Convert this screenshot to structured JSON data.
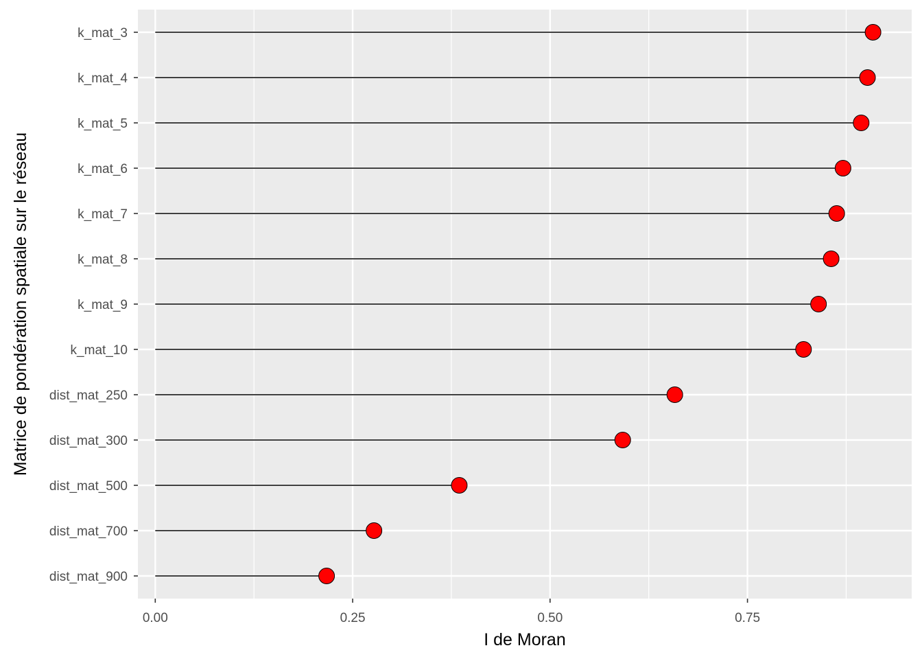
{
  "chart_data": {
    "type": "lollipop",
    "xlabel": "I de Moran",
    "ylabel": "Matrice de pondération spatiale sur le réseau",
    "xlim": [
      -0.022,
      0.958
    ],
    "x_ticks": [
      0.0,
      0.25,
      0.5,
      0.75
    ],
    "x_tick_labels": [
      "0.00",
      "0.25",
      "0.50",
      "0.75"
    ],
    "grid": true,
    "categories": [
      "k_mat_3",
      "k_mat_4",
      "k_mat_5",
      "k_mat_6",
      "k_mat_7",
      "k_mat_8",
      "k_mat_9",
      "k_mat_10",
      "dist_mat_250",
      "dist_mat_300",
      "dist_mat_500",
      "dist_mat_700",
      "dist_mat_900"
    ],
    "values": [
      0.909,
      0.902,
      0.894,
      0.871,
      0.863,
      0.856,
      0.84,
      0.821,
      0.658,
      0.592,
      0.385,
      0.277,
      0.217
    ],
    "point_color": "#FF0000",
    "panel_background": "#EBEBEB",
    "grid_color": "#FFFFFF",
    "segment_color": "#000000"
  }
}
